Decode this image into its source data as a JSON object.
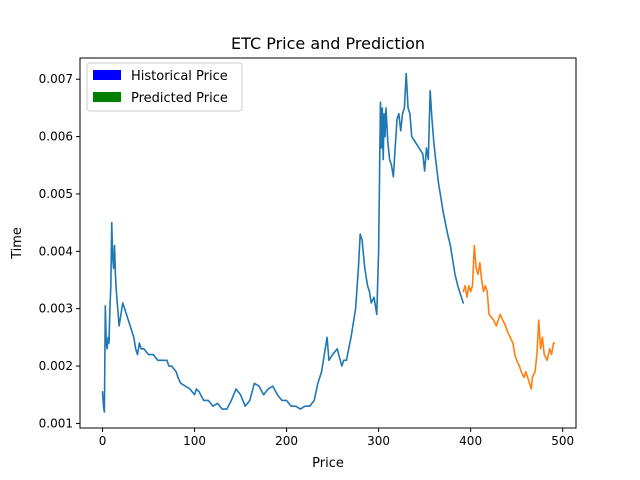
{
  "chart_data": {
    "type": "line",
    "title": "ETC Price and Prediction",
    "xlabel": "Price",
    "ylabel": "Time",
    "xlim": [
      -24.5,
      514.5
    ],
    "ylim": [
      0.00092,
      0.00737
    ],
    "xticks": [
      {
        "value": 0,
        "label": "0"
      },
      {
        "value": 100,
        "label": "100"
      },
      {
        "value": 200,
        "label": "200"
      },
      {
        "value": 300,
        "label": "300"
      },
      {
        "value": 400,
        "label": "400"
      },
      {
        "value": 500,
        "label": "500"
      }
    ],
    "yticks": [
      {
        "value": 0.001,
        "label": "0.001"
      },
      {
        "value": 0.002,
        "label": "0.002"
      },
      {
        "value": 0.003,
        "label": "0.003"
      },
      {
        "value": 0.004,
        "label": "0.004"
      },
      {
        "value": 0.005,
        "label": "0.005"
      },
      {
        "value": 0.006,
        "label": "0.006"
      },
      {
        "value": 0.007,
        "label": "0.007"
      }
    ],
    "grid": false,
    "legend": {
      "position": "top-left",
      "entries": [
        {
          "label": "Historical Price",
          "color": "#0000ff"
        },
        {
          "label": "Predicted Price",
          "color": "#008000"
        }
      ]
    },
    "series": [
      {
        "color": "#1f77b4",
        "points": [
          [
            0,
            0.00155
          ],
          [
            1,
            0.0013
          ],
          [
            2,
            0.0012
          ],
          [
            3,
            0.00305
          ],
          [
            4,
            0.0024
          ],
          [
            5,
            0.0023
          ],
          [
            6,
            0.0025
          ],
          [
            7,
            0.0024
          ],
          [
            8,
            0.003
          ],
          [
            9,
            0.0034
          ],
          [
            10,
            0.0045
          ],
          [
            11,
            0.0039
          ],
          [
            12,
            0.0037
          ],
          [
            13,
            0.0041
          ],
          [
            14,
            0.0036
          ],
          [
            15,
            0.0033
          ],
          [
            16,
            0.0031
          ],
          [
            18,
            0.0027
          ],
          [
            20,
            0.0029
          ],
          [
            22,
            0.0031
          ],
          [
            24,
            0.003
          ],
          [
            26,
            0.0029
          ],
          [
            28,
            0.0028
          ],
          [
            30,
            0.0027
          ],
          [
            32,
            0.0026
          ],
          [
            34,
            0.0025
          ],
          [
            36,
            0.0023
          ],
          [
            38,
            0.0022
          ],
          [
            40,
            0.0024
          ],
          [
            42,
            0.0023
          ],
          [
            45,
            0.0023
          ],
          [
            50,
            0.0022
          ],
          [
            55,
            0.0022
          ],
          [
            60,
            0.0021
          ],
          [
            65,
            0.0021
          ],
          [
            70,
            0.0021
          ],
          [
            72,
            0.002
          ],
          [
            75,
            0.002
          ],
          [
            80,
            0.0019
          ],
          [
            82,
            0.0018
          ],
          [
            85,
            0.0017
          ],
          [
            90,
            0.00165
          ],
          [
            95,
            0.0016
          ],
          [
            100,
            0.0015
          ],
          [
            102,
            0.0016
          ],
          [
            105,
            0.00155
          ],
          [
            110,
            0.0014
          ],
          [
            115,
            0.0014
          ],
          [
            120,
            0.0013
          ],
          [
            125,
            0.00135
          ],
          [
            130,
            0.00125
          ],
          [
            135,
            0.00125
          ],
          [
            140,
            0.0014
          ],
          [
            145,
            0.0016
          ],
          [
            150,
            0.0015
          ],
          [
            155,
            0.0013
          ],
          [
            160,
            0.0014
          ],
          [
            165,
            0.0017
          ],
          [
            170,
            0.00165
          ],
          [
            175,
            0.0015
          ],
          [
            180,
            0.0016
          ],
          [
            185,
            0.00165
          ],
          [
            190,
            0.0015
          ],
          [
            195,
            0.0014
          ],
          [
            200,
            0.0014
          ],
          [
            205,
            0.0013
          ],
          [
            210,
            0.0013
          ],
          [
            215,
            0.00125
          ],
          [
            220,
            0.0013
          ],
          [
            225,
            0.0013
          ],
          [
            230,
            0.0014
          ],
          [
            234,
            0.0017
          ],
          [
            238,
            0.0019
          ],
          [
            242,
            0.0023
          ],
          [
            244,
            0.0025
          ],
          [
            246,
            0.0021
          ],
          [
            250,
            0.0022
          ],
          [
            255,
            0.0023
          ],
          [
            260,
            0.002
          ],
          [
            262,
            0.0021
          ],
          [
            265,
            0.0021
          ],
          [
            270,
            0.0025
          ],
          [
            272,
            0.0027
          ],
          [
            275,
            0.003
          ],
          [
            278,
            0.0037
          ],
          [
            280,
            0.0043
          ],
          [
            282,
            0.0042
          ],
          [
            285,
            0.0037
          ],
          [
            288,
            0.0034
          ],
          [
            290,
            0.0033
          ],
          [
            292,
            0.0031
          ],
          [
            295,
            0.0032
          ],
          [
            298,
            0.0029
          ],
          [
            300,
            0.004
          ],
          [
            302,
            0.0066
          ],
          [
            303,
            0.0058
          ],
          [
            304,
            0.0065
          ],
          [
            305,
            0.0056
          ],
          [
            306,
            0.0064
          ],
          [
            307,
            0.006
          ],
          [
            308,
            0.0065
          ],
          [
            310,
            0.0059
          ],
          [
            312,
            0.0056
          ],
          [
            314,
            0.0055
          ],
          [
            316,
            0.0053
          ],
          [
            318,
            0.0058
          ],
          [
            320,
            0.0063
          ],
          [
            322,
            0.0064
          ],
          [
            324,
            0.0061
          ],
          [
            326,
            0.0064
          ],
          [
            328,
            0.0065
          ],
          [
            330,
            0.0071
          ],
          [
            332,
            0.0065
          ],
          [
            334,
            0.0064
          ],
          [
            336,
            0.006
          ],
          [
            340,
            0.0059
          ],
          [
            344,
            0.0058
          ],
          [
            348,
            0.0057
          ],
          [
            350,
            0.0054
          ],
          [
            352,
            0.0058
          ],
          [
            354,
            0.0056
          ],
          [
            356,
            0.0068
          ],
          [
            358,
            0.0063
          ],
          [
            360,
            0.0059
          ],
          [
            362,
            0.0056
          ],
          [
            365,
            0.0052
          ],
          [
            370,
            0.0047
          ],
          [
            375,
            0.0043
          ],
          [
            378,
            0.0041
          ],
          [
            380,
            0.0039
          ],
          [
            383,
            0.0036
          ],
          [
            386,
            0.0034
          ],
          [
            390,
            0.0032
          ],
          [
            392,
            0.0031
          ]
        ]
      },
      {
        "color": "#ff7f0e",
        "points": [
          [
            392,
            0.0033
          ],
          [
            394,
            0.0034
          ],
          [
            396,
            0.0032
          ],
          [
            398,
            0.0034
          ],
          [
            400,
            0.0033
          ],
          [
            402,
            0.0034
          ],
          [
            404,
            0.0041
          ],
          [
            406,
            0.0037
          ],
          [
            408,
            0.0036
          ],
          [
            410,
            0.0038
          ],
          [
            412,
            0.0035
          ],
          [
            414,
            0.0033
          ],
          [
            416,
            0.0034
          ],
          [
            418,
            0.0033
          ],
          [
            420,
            0.0029
          ],
          [
            425,
            0.0028
          ],
          [
            428,
            0.0027
          ],
          [
            430,
            0.0028
          ],
          [
            432,
            0.0029
          ],
          [
            435,
            0.0028
          ],
          [
            438,
            0.0027
          ],
          [
            440,
            0.0026
          ],
          [
            443,
            0.0025
          ],
          [
            446,
            0.0024
          ],
          [
            448,
            0.0022
          ],
          [
            450,
            0.0021
          ],
          [
            453,
            0.002
          ],
          [
            455,
            0.0019
          ],
          [
            458,
            0.0018
          ],
          [
            460,
            0.0019
          ],
          [
            462,
            0.0018
          ],
          [
            464,
            0.0017
          ],
          [
            466,
            0.0016
          ],
          [
            467,
            0.0018
          ],
          [
            470,
            0.0019
          ],
          [
            472,
            0.0022
          ],
          [
            474,
            0.0028
          ],
          [
            476,
            0.0023
          ],
          [
            478,
            0.0025
          ],
          [
            480,
            0.0022
          ],
          [
            483,
            0.0021
          ],
          [
            486,
            0.0023
          ],
          [
            488,
            0.0022
          ],
          [
            490,
            0.0024
          ],
          [
            491,
            0.0024
          ]
        ]
      }
    ]
  }
}
